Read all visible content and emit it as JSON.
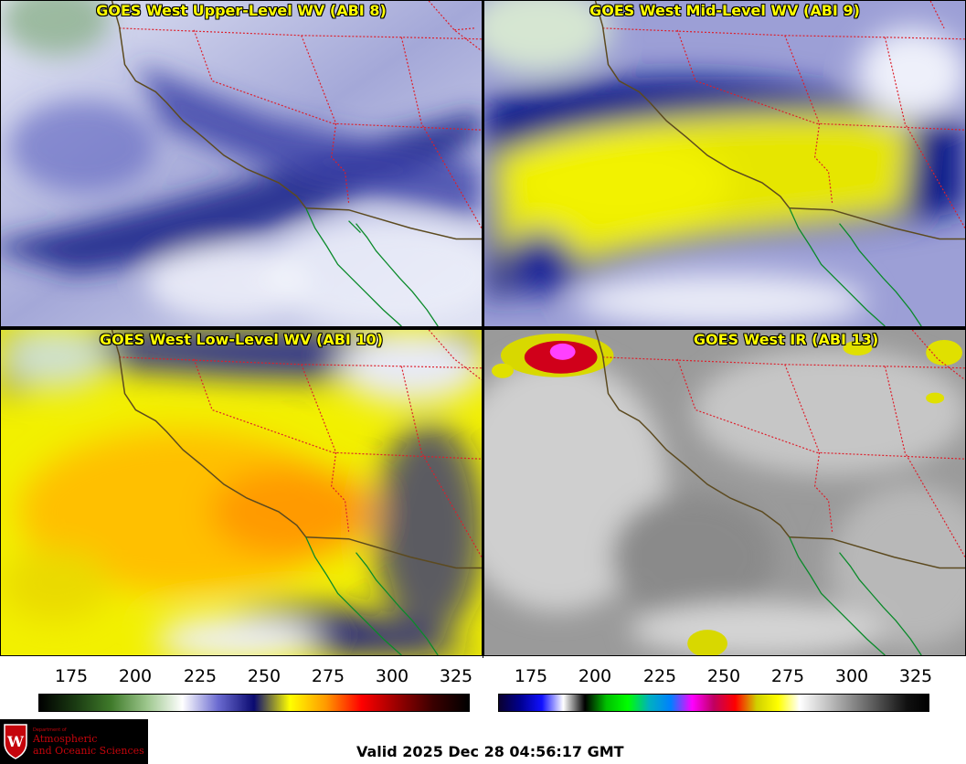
{
  "panels": [
    {
      "id": "ul",
      "title": "GOES West Upper-Level WV (ABI 8)"
    },
    {
      "id": "ml",
      "title": "GOES West Mid-Level WV (ABI 9)"
    },
    {
      "id": "ll",
      "title": "GOES West Low-Level WV (ABI 10)"
    },
    {
      "id": "ir",
      "title": "GOES West IR (ABI 13)"
    }
  ],
  "colorbars": [
    {
      "name": "water-vapor",
      "ticks": [
        "175",
        "200",
        "225",
        "250",
        "275",
        "300",
        "325"
      ],
      "colors": [
        "#000000",
        "#1a3a12",
        "#3f7a2a",
        "#9cc68c",
        "#ffffff",
        "#6a6ad0",
        "#0a0a70",
        "#ffff00",
        "#ff9a00",
        "#ff0000",
        "#990000",
        "#3a0000",
        "#000000"
      ]
    },
    {
      "name": "infrared",
      "ticks": [
        "175",
        "200",
        "225",
        "250",
        "275",
        "300",
        "325"
      ],
      "colors": [
        "#0a0030",
        "#000090",
        "#1010ff",
        "#ffffff",
        "#000000",
        "#00c000",
        "#00ff00",
        "#00b0c0",
        "#0080ff",
        "#ff00ff",
        "#c00060",
        "#ff0000",
        "#d0d000",
        "#ffff00",
        "#ffffff",
        "#d0d0d0",
        "#a0a0a0",
        "#707070",
        "#404040",
        "#101010",
        "#000000"
      ]
    }
  ],
  "logo": {
    "dept": "Department of",
    "name_line1": "Atmospheric",
    "name_line2": "and Oceanic Sciences",
    "crest_letter": "W"
  },
  "valid_time": "Valid 2025 Dec 28 04:56:17 GMT",
  "colors": {
    "border_red": "#dd1f2b",
    "coast": "#5c4a1f",
    "baja_coast": "#0a8a2a",
    "title_yellow": "#ffff00"
  }
}
